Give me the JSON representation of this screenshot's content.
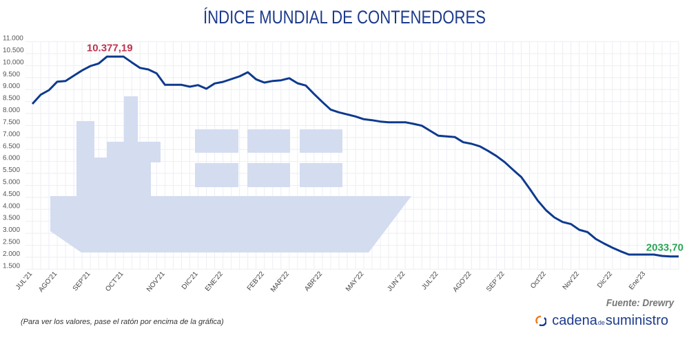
{
  "chart_data": {
    "type": "line",
    "title": "ÍNDICE MUNDIAL DE CONTENEDORES",
    "xlabel": "",
    "ylabel": "",
    "ylim": [
      1500,
      11000
    ],
    "yticks": [
      "11.000",
      "10.500",
      "10.000",
      "9.500",
      "9.000",
      "8.500",
      "8.000",
      "7.500",
      "7.000",
      "6.500",
      "6.000",
      "5.500",
      "5.000",
      "4.500",
      "4.000",
      "3.500",
      "3.000",
      "2.500",
      "2.000",
      "1.500"
    ],
    "ytick_values": [
      11000,
      10500,
      10000,
      9500,
      9000,
      8500,
      8000,
      7500,
      7000,
      6500,
      6000,
      5500,
      5000,
      4500,
      4000,
      3500,
      3000,
      2500,
      2000,
      1500
    ],
    "grid": true,
    "xticks": [
      {
        "label": "JUL'21",
        "index": 0
      },
      {
        "label": "AGO'21",
        "index": 3
      },
      {
        "label": "SEP'21",
        "index": 7
      },
      {
        "label": "OCT'21",
        "index": 11
      },
      {
        "label": "NOV'21",
        "index": 16
      },
      {
        "label": "DIC'21",
        "index": 20
      },
      {
        "label": "ENE'22",
        "index": 23
      },
      {
        "label": "FEB'22",
        "index": 28
      },
      {
        "label": "MAR'22",
        "index": 31
      },
      {
        "label": "ABR'22",
        "index": 35
      },
      {
        "label": "MAY'22",
        "index": 40
      },
      {
        "label": "JUN´22",
        "index": 45
      },
      {
        "label": "JUL'22",
        "index": 49
      },
      {
        "label": "AGO'22",
        "index": 53
      },
      {
        "label": "SEP´22",
        "index": 57
      },
      {
        "label": "Oct'22",
        "index": 62
      },
      {
        "label": "Nov'22",
        "index": 66
      },
      {
        "label": "Dic'22",
        "index": 70
      },
      {
        "label": "Ene'23",
        "index": 74
      }
    ],
    "series": [
      {
        "color": "#0d3a8e",
        "values": [
          8403,
          8785,
          8978,
          9331,
          9360,
          9581,
          9802,
          9983,
          10090,
          10377.19,
          10377,
          10377,
          10136,
          9906,
          9840,
          9676,
          9199,
          9199,
          9199,
          9121,
          9188,
          9035,
          9257,
          9323,
          9438,
          9552,
          9725,
          9429,
          9294,
          9360,
          9389,
          9475,
          9265,
          9170,
          8814,
          8481,
          8165,
          8050,
          7964,
          7877,
          7763,
          7722,
          7665,
          7636,
          7636,
          7636,
          7570,
          7493,
          7283,
          7073,
          7044,
          7016,
          6803,
          6737,
          6631,
          6441,
          6228,
          5970,
          5654,
          5349,
          4869,
          4361,
          3959,
          3663,
          3470,
          3384,
          3146,
          3051,
          2764,
          2571,
          2399,
          2246,
          2111,
          2111,
          2111,
          2111,
          2054,
          2034,
          2033.7
        ]
      }
    ],
    "annotations": [
      {
        "text": "10.377,19",
        "index": 9,
        "color": "#c0324e"
      },
      {
        "text": "2033,70",
        "index": 78,
        "color": "#2aa655"
      }
    ]
  },
  "source": "Fuente: Drewry",
  "hint": "(Para ver los valores, pase el ratón por encima de la gráfica)",
  "logo": {
    "part1": "cadena",
    "part2": "de",
    "part3": "suministro",
    "colors": [
      "#f07a1a",
      "#1b3a8c"
    ]
  },
  "illustration_color": "#d4dcf0"
}
